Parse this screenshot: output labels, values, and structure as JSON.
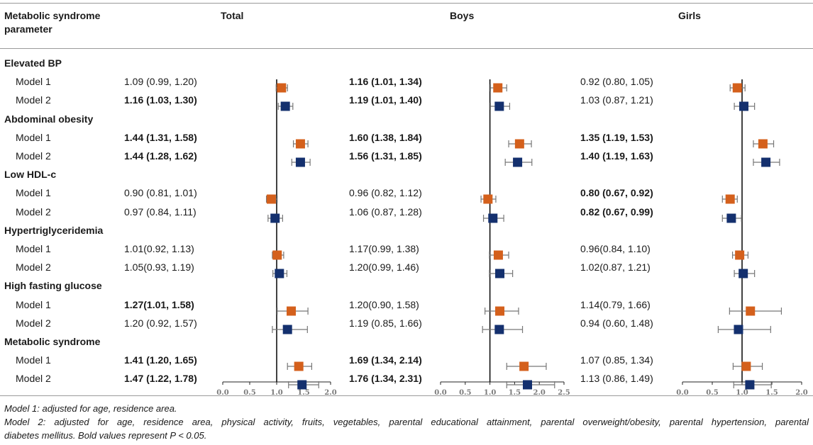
{
  "header": {
    "param_label_line1": "Metabolic syndrome",
    "param_label_line2": "parameter",
    "total": "Total",
    "boys": "Boys",
    "girls": "Girls"
  },
  "rows": [
    {
      "section": "Elevated BP"
    },
    {
      "model": "Model 1",
      "total": "1.09 (0.99, 1.20)",
      "total_bold": false,
      "boys": "1.16 (1.01, 1.34)",
      "boys_bold": true,
      "girls": "0.92 (0.80, 1.05)",
      "girls_bold": false
    },
    {
      "model": "Model 2",
      "total": "1.16 (1.03, 1.30)",
      "total_bold": true,
      "boys": "1.19 (1.01, 1.40)",
      "boys_bold": true,
      "girls": "1.03 (0.87, 1.21)",
      "girls_bold": false
    },
    {
      "section": "Abdominal obesity"
    },
    {
      "model": "Model 1",
      "total": "1.44 (1.31, 1.58)",
      "total_bold": true,
      "boys": "1.60 (1.38, 1.84)",
      "boys_bold": true,
      "girls": "1.35 (1.19, 1.53)",
      "girls_bold": true
    },
    {
      "model": "Model 2",
      "total": "1.44 (1.28, 1.62)",
      "total_bold": true,
      "boys": "1.56 (1.31, 1.85)",
      "boys_bold": true,
      "girls": "1.40 (1.19, 1.63)",
      "girls_bold": true
    },
    {
      "section": "Low HDL-c"
    },
    {
      "model": "Model 1",
      "total": "0.90 (0.81, 1.01)",
      "total_bold": false,
      "boys": "0.96 (0.82, 1.12)",
      "boys_bold": false,
      "girls": "0.80 (0.67, 0.92)",
      "girls_bold": true
    },
    {
      "model": "Model 2",
      "total": "0.97 (0.84, 1.11)",
      "total_bold": false,
      "boys": "1.06 (0.87, 1.28)",
      "boys_bold": false,
      "girls": "0.82 (0.67, 0.99)",
      "girls_bold": true
    },
    {
      "section": "Hypertriglyceridemia"
    },
    {
      "model": "Model 1",
      "total": "1.01(0.92, 1.13)",
      "total_bold": false,
      "boys": "1.17(0.99, 1.38)",
      "boys_bold": false,
      "girls": "0.96(0.84, 1.10)",
      "girls_bold": false
    },
    {
      "model": "Model 2",
      "total": "1.05(0.93, 1.19)",
      "total_bold": false,
      "boys": "1.20(0.99, 1.46)",
      "boys_bold": false,
      "girls": "1.02(0.87, 1.21)",
      "girls_bold": false
    },
    {
      "section": "High fasting glucose"
    },
    {
      "model": "Model 1",
      "total": "1.27(1.01, 1.58)",
      "total_bold": true,
      "boys": "1.20(0.90, 1.58)",
      "boys_bold": false,
      "girls": "1.14(0.79, 1.66)",
      "girls_bold": false
    },
    {
      "model": "Model 2",
      "total": "1.20 (0.92, 1.57)",
      "total_bold": false,
      "boys": "1.19 (0.85, 1.66)",
      "boys_bold": false,
      "girls": "0.94 (0.60, 1.48)",
      "girls_bold": false
    },
    {
      "section": "Metabolic syndrome"
    },
    {
      "model": "Model 1",
      "total": "1.41 (1.20, 1.65)",
      "total_bold": true,
      "boys": "1.69 (1.34, 2.14)",
      "boys_bold": true,
      "girls": "1.07 (0.85, 1.34)",
      "girls_bold": false
    },
    {
      "model": "Model 2",
      "total": "1.47 (1.22, 1.78)",
      "total_bold": true,
      "boys": "1.76 (1.34, 2.31)",
      "boys_bold": true,
      "girls": "1.13 (0.86, 1.49)",
      "girls_bold": false
    }
  ],
  "chart_data": {
    "type": "forest",
    "panels": [
      "Total",
      "Boys",
      "Girls"
    ],
    "x_ticks": [
      [
        "0.0",
        "0.5",
        "1.0",
        "1.5",
        "2.0"
      ],
      [
        "0.0",
        "0.5",
        "1.0",
        "1.5",
        "2.0",
        "2.5"
      ],
      [
        "0.0",
        "0.5",
        "1.0",
        "1.5",
        "2.0"
      ]
    ],
    "xlim": [
      [
        0,
        2.0
      ],
      [
        0,
        2.5
      ],
      [
        0,
        2.0
      ]
    ],
    "reference_line": 1.0,
    "series_colors": {
      "Model 1": "#d4601c",
      "Model 2": "#14306e"
    },
    "groups": [
      "Elevated BP",
      "Abdominal obesity",
      "Low HDL-c",
      "Hypertriglyceridemia",
      "High fasting glucose",
      "Metabolic syndrome"
    ],
    "marker_rows": [
      {
        "group": "Elevated BP",
        "series": "Model 1",
        "total": [
          1.09,
          0.99,
          1.2
        ],
        "boys": [
          1.16,
          1.01,
          1.34
        ],
        "girls": [
          0.92,
          0.8,
          1.05
        ]
      },
      {
        "group": "Elevated BP",
        "series": "Model 2",
        "total": [
          1.16,
          1.03,
          1.3
        ],
        "boys": [
          1.19,
          1.01,
          1.4
        ],
        "girls": [
          1.03,
          0.87,
          1.21
        ]
      },
      {
        "group": "Abdominal obesity",
        "series": "Model 1",
        "total": [
          1.44,
          1.31,
          1.58
        ],
        "boys": [
          1.6,
          1.38,
          1.84
        ],
        "girls": [
          1.35,
          1.19,
          1.53
        ]
      },
      {
        "group": "Abdominal obesity",
        "series": "Model 2",
        "total": [
          1.44,
          1.28,
          1.62
        ],
        "boys": [
          1.56,
          1.31,
          1.85
        ],
        "girls": [
          1.4,
          1.19,
          1.63
        ]
      },
      {
        "group": "Low HDL-c",
        "series": "Model 1",
        "total": [
          0.9,
          0.81,
          1.01
        ],
        "boys": [
          0.96,
          0.82,
          1.12
        ],
        "girls": [
          0.8,
          0.67,
          0.92
        ]
      },
      {
        "group": "Low HDL-c",
        "series": "Model 2",
        "total": [
          0.97,
          0.84,
          1.11
        ],
        "boys": [
          1.06,
          0.87,
          1.28
        ],
        "girls": [
          0.82,
          0.67,
          0.99
        ]
      },
      {
        "group": "Hypertriglyceridemia",
        "series": "Model 1",
        "total": [
          1.01,
          0.92,
          1.13
        ],
        "boys": [
          1.17,
          0.99,
          1.38
        ],
        "girls": [
          0.96,
          0.84,
          1.1
        ]
      },
      {
        "group": "Hypertriglyceridemia",
        "series": "Model 2",
        "total": [
          1.05,
          0.93,
          1.19
        ],
        "boys": [
          1.2,
          0.99,
          1.46
        ],
        "girls": [
          1.02,
          0.87,
          1.21
        ]
      },
      {
        "group": "High fasting glucose",
        "series": "Model 1",
        "total": [
          1.27,
          1.01,
          1.58
        ],
        "boys": [
          1.2,
          0.9,
          1.58
        ],
        "girls": [
          1.14,
          0.79,
          1.66
        ]
      },
      {
        "group": "High fasting glucose",
        "series": "Model 2",
        "total": [
          1.2,
          0.92,
          1.57
        ],
        "boys": [
          1.19,
          0.85,
          1.66
        ],
        "girls": [
          0.94,
          0.6,
          1.48
        ]
      },
      {
        "group": "Metabolic syndrome",
        "series": "Model 1",
        "total": [
          1.41,
          1.2,
          1.65
        ],
        "boys": [
          1.69,
          1.34,
          2.14
        ],
        "girls": [
          1.07,
          0.85,
          1.34
        ]
      },
      {
        "group": "Metabolic syndrome",
        "series": "Model 2",
        "total": [
          1.47,
          1.22,
          1.78
        ],
        "boys": [
          1.76,
          1.34,
          2.31
        ],
        "girls": [
          1.13,
          0.86,
          1.49
        ]
      }
    ]
  },
  "footnotes": {
    "line1": "Model 1: adjusted for age, residence area.",
    "line2": "Model 2: adjusted for age, residence area, physical activity, fruits, vegetables, parental educational attainment, parental overweight/obesity, parental hypertension, parental",
    "line3": "diabetes mellitus. Bold values represent P < 0.05."
  }
}
